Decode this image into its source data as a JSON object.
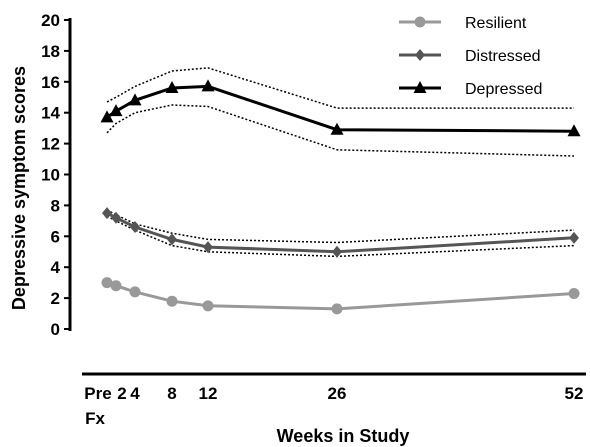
{
  "chart_data": {
    "type": "line",
    "xlabel": "Weeks in Study",
    "ylabel": "Depressive symptom scores",
    "ylim": [
      0,
      20
    ],
    "yticks": [
      "0",
      "2",
      "4",
      "6",
      "8",
      "10",
      "12",
      "14",
      "16",
      "18",
      "20"
    ],
    "xticks": [
      {
        "label": "Pre",
        "sub": "Fx",
        "x": 0
      },
      {
        "label": "2",
        "x": 2
      },
      {
        "label": "4",
        "x": 4
      },
      {
        "label": "8",
        "x": 8
      },
      {
        "label": "12",
        "x": 12
      },
      {
        "label": "26",
        "x": 26
      },
      {
        "label": "52",
        "x": 52
      }
    ],
    "x": [
      0,
      1,
      4,
      8,
      12,
      26,
      52
    ],
    "legend_position": "top-right",
    "series": [
      {
        "name": "Resilient",
        "marker": "circle",
        "color": "#999999",
        "values": [
          3.0,
          2.8,
          2.4,
          1.8,
          1.5,
          1.3,
          2.3
        ]
      },
      {
        "name": "Distressed",
        "marker": "diamond",
        "color": "#555555",
        "values": [
          7.5,
          7.2,
          6.6,
          5.8,
          5.3,
          5.0,
          5.9
        ],
        "ci_upper": [
          7.7,
          7.4,
          6.8,
          6.2,
          5.8,
          5.6,
          6.4
        ],
        "ci_lower": [
          7.3,
          7.0,
          6.4,
          5.4,
          5.0,
          4.7,
          5.4
        ]
      },
      {
        "name": "Depressed",
        "marker": "triangle",
        "color": "#000000",
        "values": [
          13.7,
          14.1,
          14.8,
          15.6,
          15.7,
          12.9,
          12.8
        ],
        "ci_upper": [
          14.7,
          15.0,
          15.7,
          16.7,
          16.9,
          14.3,
          14.3
        ],
        "ci_lower": [
          12.7,
          13.3,
          14.0,
          14.5,
          14.4,
          11.6,
          11.2
        ]
      }
    ]
  }
}
